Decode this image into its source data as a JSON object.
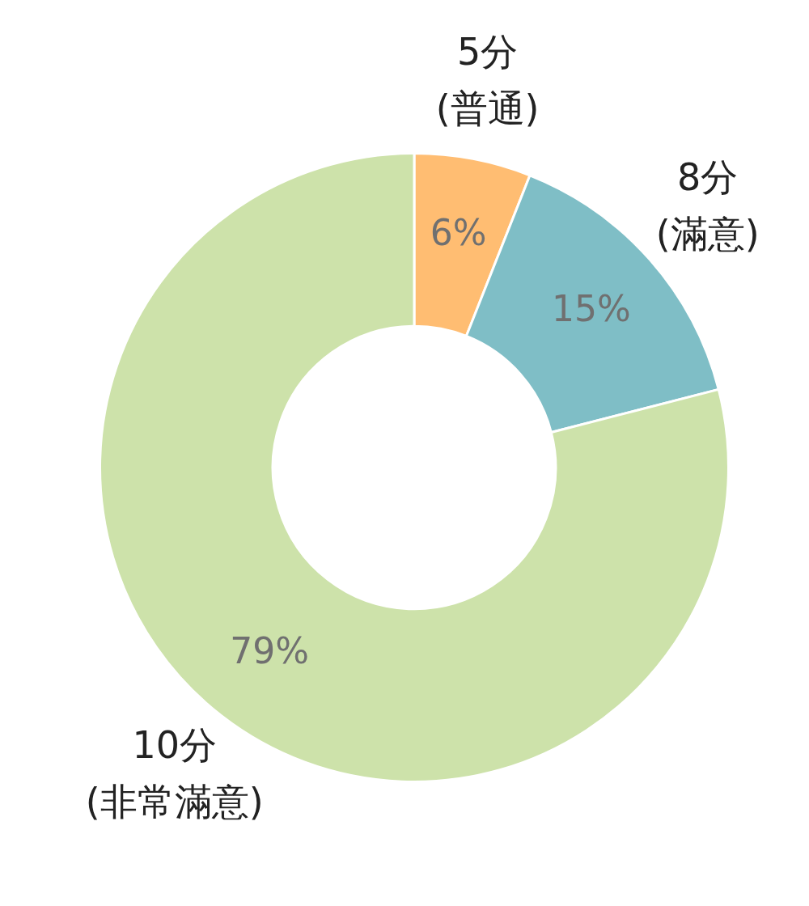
{
  "chart_data": {
    "type": "donut",
    "categories": [
      "5分\n(普通)",
      "8分\n(滿意)",
      "10分\n(非常滿意)"
    ],
    "values": [
      6,
      15,
      79
    ],
    "colors": [
      "#ffbd72",
      "#7fbec6",
      "#cde2aa"
    ],
    "value_labels": [
      "6%",
      "15%",
      "79%"
    ],
    "legend": false
  }
}
